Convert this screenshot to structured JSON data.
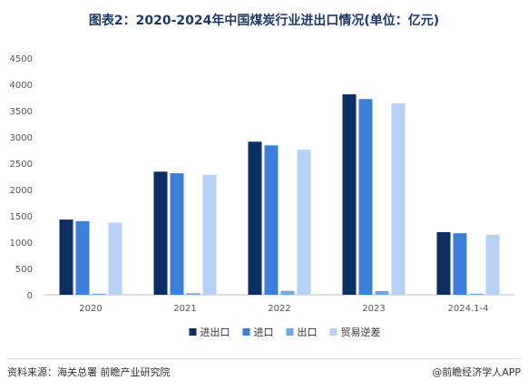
{
  "title": "图表2：2020-2024年中国煤炭行业进出口情况(单位：亿元)",
  "source": "资料来源：海关总署 前瞻产业研究院",
  "credit": "@前瞻经济学人APP",
  "chart_data": {
    "type": "bar",
    "categories": [
      "2020",
      "2021",
      "2022",
      "2023",
      "2024.1-4"
    ],
    "ylim": [
      0,
      4500
    ],
    "yticks": [
      0,
      500,
      1000,
      1500,
      2000,
      2500,
      3000,
      3500,
      4000,
      4500
    ],
    "grid": false,
    "legend_position": "bottom",
    "series": [
      {
        "name": "进出口",
        "color": "#0d2e63",
        "values": [
          1430,
          2340,
          2910,
          3810,
          1190
        ]
      },
      {
        "name": "进口",
        "color": "#3c7fdb",
        "values": [
          1400,
          2310,
          2840,
          3720,
          1170
        ]
      },
      {
        "name": "出口",
        "color": "#6ea6ea",
        "values": [
          20,
          30,
          75,
          70,
          20
        ]
      },
      {
        "name": "贸易逆差",
        "color": "#b7d2f4",
        "values": [
          1370,
          2280,
          2760,
          3640,
          1140
        ]
      }
    ]
  }
}
